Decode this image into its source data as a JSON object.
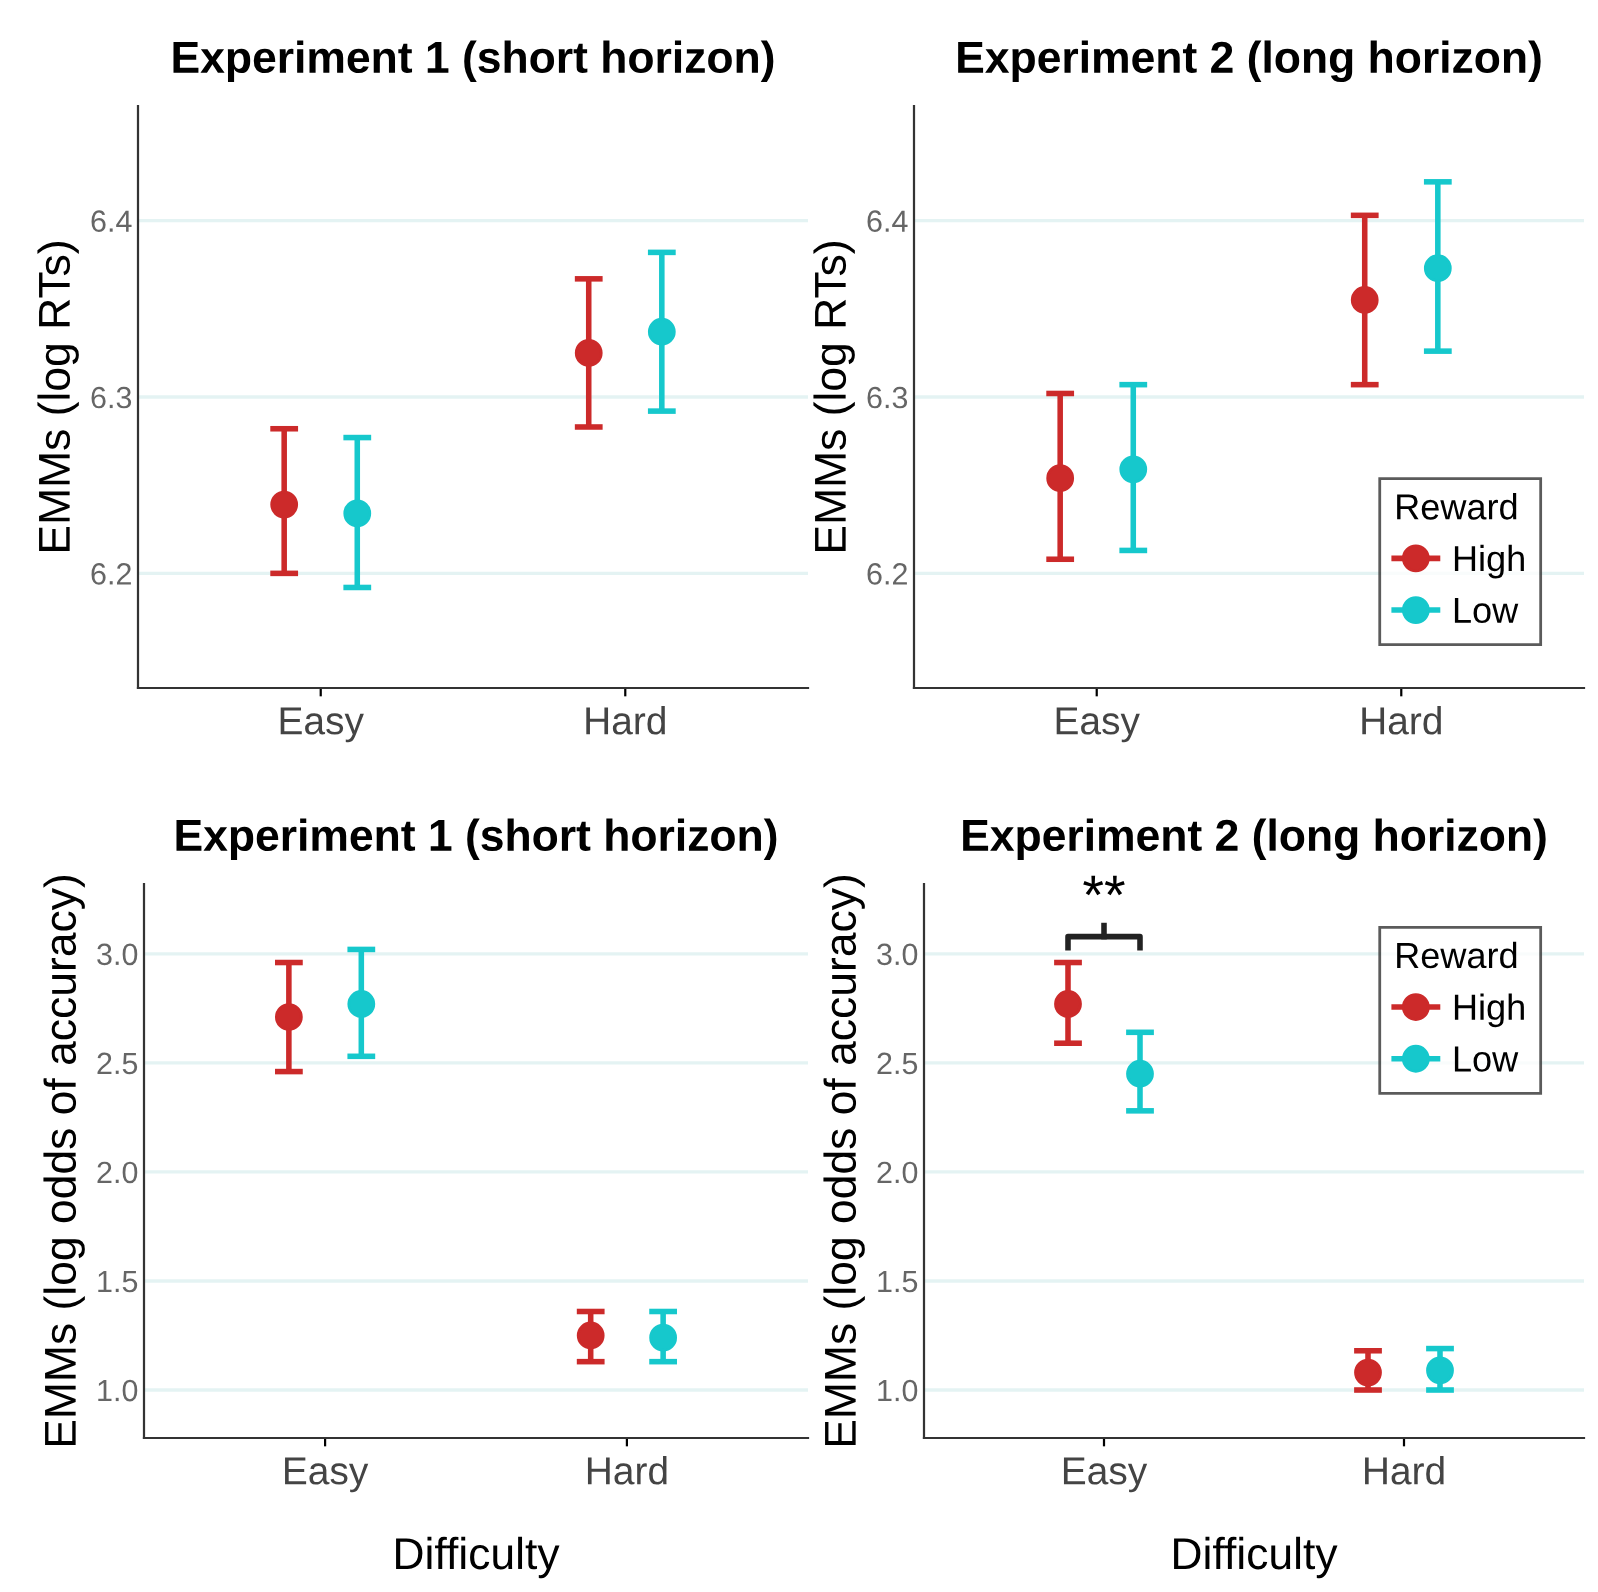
{
  "chart_data": [
    {
      "type": "scatter",
      "title": "Experiment 1 (short horizon)",
      "ylabel": "EMMs (log RTs)",
      "categories": [
        "Easy",
        "Hard"
      ],
      "ylim": [
        6.135,
        6.465
      ],
      "yticks": [
        6.2,
        6.3,
        6.4
      ],
      "grid": "y",
      "marker": "circle",
      "legend": false,
      "series": [
        {
          "color": "#cc2a2a",
          "values": [
            6.239,
            6.325
          ],
          "errors": [
            [
              6.2,
              6.282
            ],
            [
              6.283,
              6.367
            ]
          ]
        },
        {
          "color": "#16c8cc",
          "values": [
            6.234,
            6.337
          ],
          "errors": [
            [
              6.192,
              6.277
            ],
            [
              6.292,
              6.382
            ]
          ]
        }
      ]
    },
    {
      "type": "scatter",
      "title": "Experiment 2 (long horizon)",
      "ylabel": "EMMs (log RTs)",
      "categories": [
        "Easy",
        "Hard"
      ],
      "ylim": [
        6.135,
        6.465
      ],
      "yticks": [
        6.2,
        6.3,
        6.4
      ],
      "grid": "y",
      "marker": "circle",
      "legend": "bottom right",
      "legend_title": "Reward",
      "series": [
        {
          "name": "High",
          "color": "#cc2a2a",
          "values": [
            6.254,
            6.355
          ],
          "errors": [
            [
              6.208,
              6.302
            ],
            [
              6.307,
              6.403
            ]
          ]
        },
        {
          "name": "Low",
          "color": "#16c8cc",
          "values": [
            6.259,
            6.373
          ],
          "errors": [
            [
              6.213,
              6.307
            ],
            [
              6.326,
              6.422
            ]
          ]
        }
      ]
    },
    {
      "type": "scatter",
      "title": "Experiment 1 (short horizon)",
      "xlabel": "Difficulty",
      "ylabel": "EMMs (log odds of accuracy)",
      "categories": [
        "Easy",
        "Hard"
      ],
      "ylim": [
        0.78,
        3.32
      ],
      "yticks": [
        {
          "value": 1,
          "label": "1.0"
        },
        1.5,
        {
          "value": 2,
          "label": "2.0"
        },
        2.5,
        {
          "value": 3,
          "label": "3.0"
        }
      ],
      "grid": "y",
      "marker": "circle",
      "legend": false,
      "series": [
        {
          "color": "#cc2a2a",
          "values": [
            2.71,
            1.25
          ],
          "errors": [
            [
              2.46,
              2.96
            ],
            [
              1.13,
              1.36
            ]
          ]
        },
        {
          "color": "#16c8cc",
          "values": [
            2.77,
            1.24
          ],
          "errors": [
            [
              2.53,
              3.02
            ],
            [
              1.13,
              1.36
            ]
          ]
        }
      ]
    },
    {
      "type": "scatter",
      "title": "Experiment 2 (long horizon)",
      "xlabel": "Difficulty",
      "ylabel": "EMMs (log odds of accuracy)",
      "categories": [
        "Easy",
        "Hard"
      ],
      "ylim": [
        0.78,
        3.32
      ],
      "yticks": [
        {
          "value": 1,
          "label": "1.0"
        },
        1.5,
        {
          "value": 2,
          "label": "2.0"
        },
        2.5,
        {
          "value": 3,
          "label": "3.0"
        }
      ],
      "grid": "y",
      "marker": "circle",
      "legend": "top right",
      "legend_title": "Reward",
      "annotations": [
        "**"
      ],
      "series": [
        {
          "name": "High",
          "color": "#cc2a2a",
          "values": [
            2.77,
            1.08
          ],
          "errors": [
            [
              2.59,
              2.96
            ],
            [
              1.0,
              1.18
            ]
          ]
        },
        {
          "name": "Low",
          "color": "#16c8cc",
          "values": [
            2.45,
            1.09
          ],
          "errors": [
            [
              2.28,
              2.64
            ],
            [
              1.0,
              1.19
            ]
          ]
        }
      ]
    }
  ]
}
